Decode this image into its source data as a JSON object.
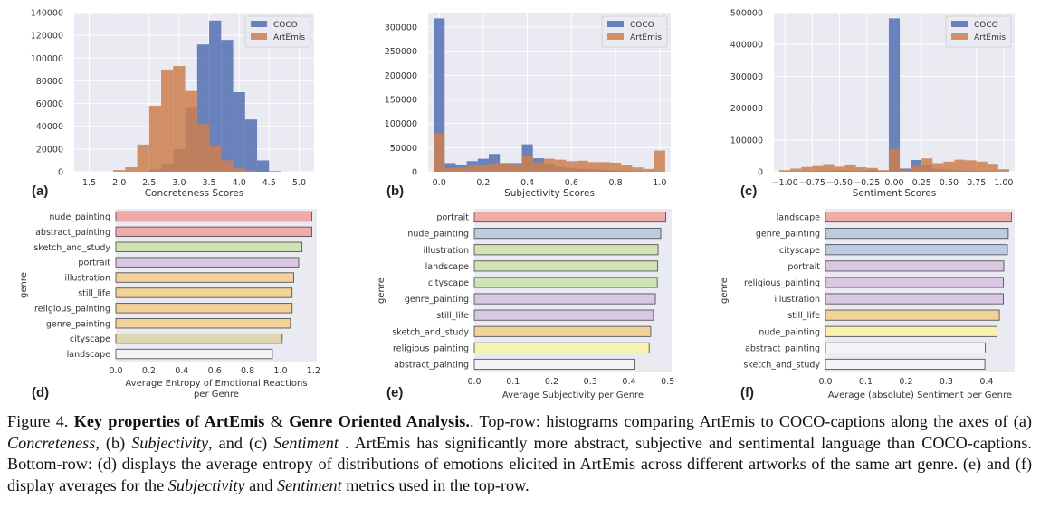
{
  "colors": {
    "coco": "#5470b3",
    "artemis": "#cc7f4f",
    "plot_bg": "#eaeaf2",
    "grid": "#ffffff",
    "bar_edge": "#555555"
  },
  "chart_data": [
    {
      "id": "a",
      "panel_label": "(a)",
      "type": "bar",
      "xlabel": "Concreteness Scores",
      "xlim": [
        1.25,
        5.25
      ],
      "ylim": [
        0,
        140000
      ],
      "xticks": [
        "1.5",
        "2.0",
        "2.5",
        "3.0",
        "3.5",
        "4.0",
        "4.5",
        "5.0"
      ],
      "xtick_values": [
        1.5,
        2.0,
        2.5,
        3.0,
        3.5,
        4.0,
        4.5,
        5.0
      ],
      "yticks": [
        "0",
        "20000",
        "40000",
        "60000",
        "80000",
        "100000",
        "120000",
        "140000"
      ],
      "ytick_values": [
        0,
        20000,
        40000,
        60000,
        80000,
        100000,
        120000,
        140000
      ],
      "bin_edges": [
        1.5,
        1.7,
        1.9,
        2.1,
        2.3,
        2.5,
        2.7,
        2.9,
        3.1,
        3.3,
        3.5,
        3.7,
        3.9,
        4.1,
        4.3,
        4.5,
        4.7,
        4.9,
        5.1
      ],
      "series": [
        {
          "name": "COCO",
          "values": [
            0,
            0,
            0,
            0,
            0,
            2000,
            7000,
            20000,
            57000,
            112000,
            133000,
            116000,
            70000,
            46000,
            10000,
            500,
            0,
            0
          ]
        },
        {
          "name": "ArtEmis",
          "values": [
            0,
            0,
            1500,
            4000,
            24000,
            58000,
            90000,
            93000,
            71000,
            42000,
            23000,
            10000,
            3000,
            1000,
            0,
            0,
            0,
            0
          ]
        }
      ],
      "legend_position": "top-right",
      "grid": true
    },
    {
      "id": "b",
      "panel_label": "(b)",
      "type": "bar",
      "xlabel": "Subjectivity Scores",
      "xlim": [
        -0.05,
        1.05
      ],
      "ylim": [
        0,
        330000
      ],
      "xticks": [
        "0.0",
        "0.2",
        "0.4",
        "0.6",
        "0.8",
        "1.0"
      ],
      "xtick_values": [
        0,
        0.2,
        0.4,
        0.6,
        0.8,
        1.0
      ],
      "yticks": [
        "0",
        "50000",
        "100000",
        "150000",
        "200000",
        "250000",
        "300000"
      ],
      "ytick_values": [
        0,
        50000,
        100000,
        150000,
        200000,
        250000,
        300000
      ],
      "bin_edges": [
        -0.025,
        0.025,
        0.075,
        0.125,
        0.175,
        0.225,
        0.275,
        0.325,
        0.375,
        0.425,
        0.475,
        0.525,
        0.575,
        0.625,
        0.675,
        0.725,
        0.775,
        0.825,
        0.875,
        0.925,
        0.975,
        1.025
      ],
      "series": [
        {
          "name": "COCO",
          "values": [
            318000,
            18000,
            14000,
            22000,
            27000,
            37000,
            18000,
            18000,
            57000,
            28000,
            17000,
            10000,
            8000,
            6000,
            5000,
            4000,
            3000,
            2000,
            1000,
            500,
            400
          ]
        },
        {
          "name": "ArtEmis",
          "values": [
            80000,
            8000,
            9000,
            13000,
            14000,
            18000,
            17000,
            16000,
            32000,
            20000,
            27000,
            25000,
            22000,
            23000,
            20000,
            20000,
            19000,
            14000,
            9000,
            6000,
            44000
          ]
        }
      ],
      "legend_position": "top-right",
      "grid": true
    },
    {
      "id": "c",
      "panel_label": "(c)",
      "type": "bar",
      "xlabel": "Sentiment Scores",
      "xlim": [
        -1.1,
        1.1
      ],
      "ylim": [
        0,
        500000
      ],
      "xticks": [
        "−1.00",
        "−0.75",
        "−0.50",
        "−0.25",
        "0.00",
        "0.25",
        "0.50",
        "0.75",
        "1.00"
      ],
      "xtick_values": [
        -1.0,
        -0.75,
        -0.5,
        -0.25,
        0,
        0.25,
        0.5,
        0.75,
        1.0
      ],
      "yticks": [
        "0",
        "100000",
        "200000",
        "300000",
        "400000",
        "500000"
      ],
      "ytick_values": [
        0,
        100000,
        200000,
        300000,
        400000,
        500000
      ],
      "bin_edges": [
        -1.05,
        -0.95,
        -0.85,
        -0.75,
        -0.65,
        -0.55,
        -0.45,
        -0.35,
        -0.25,
        -0.15,
        -0.05,
        0.05,
        0.15,
        0.25,
        0.35,
        0.45,
        0.55,
        0.65,
        0.75,
        0.85,
        0.95,
        1.05
      ],
      "series": [
        {
          "name": "COCO",
          "values": [
            0,
            1000,
            2000,
            3000,
            3000,
            5000,
            4000,
            3000,
            6000,
            4000,
            482000,
            10000,
            37000,
            22000,
            9000,
            7000,
            4000,
            3000,
            2000,
            1000,
            500
          ]
        },
        {
          "name": "ArtEmis",
          "values": [
            5000,
            10000,
            15000,
            18000,
            24000,
            16000,
            23000,
            14000,
            12000,
            5000,
            72000,
            5000,
            18000,
            42000,
            27000,
            32000,
            38000,
            36000,
            32000,
            25000,
            8000
          ]
        }
      ],
      "legend_position": "top-right",
      "grid": true
    },
    {
      "id": "d",
      "panel_label": "(d)",
      "type": "bar",
      "orientation": "horizontal",
      "xlabel": "Average Entropy of Emotional Reactions per Genre",
      "xlabel_lines": [
        "Average Entropy of Emotional Reactions",
        "per Genre"
      ],
      "ylabel": "genre",
      "xlim": [
        0,
        1.22
      ],
      "xticks": [
        "0.0",
        "0.2",
        "0.4",
        "0.6",
        "0.8",
        "1.0",
        "1.2"
      ],
      "xtick_values": [
        0,
        0.2,
        0.4,
        0.6,
        0.8,
        1.0,
        1.2
      ],
      "categories": [
        "nude_painting",
        "abstract_painting",
        "sketch_and_study",
        "portrait",
        "illustration",
        "still_life",
        "religious_painting",
        "genre_painting",
        "cityscape",
        "landscape"
      ],
      "values": [
        1.19,
        1.19,
        1.13,
        1.11,
        1.08,
        1.07,
        1.07,
        1.06,
        1.01,
        0.95
      ],
      "bar_colors": [
        "#efaaaa",
        "#efaaaa",
        "#cfe3b5",
        "#d9c7e4",
        "#f3d29a",
        "#f3d29a",
        "#f3d29a",
        "#f3d29a",
        "#e0d7b0",
        "#f4f4f4"
      ]
    },
    {
      "id": "e",
      "panel_label": "(e)",
      "type": "bar",
      "orientation": "horizontal",
      "xlabel": "Average Subjectivity per Genre",
      "ylabel": "genre",
      "xlim": [
        0,
        0.51
      ],
      "xticks": [
        "0.0",
        "0.1",
        "0.2",
        "0.3",
        "0.4",
        "0.5"
      ],
      "xtick_values": [
        0,
        0.1,
        0.2,
        0.3,
        0.4,
        0.5
      ],
      "categories": [
        "portrait",
        "nude_painting",
        "illustration",
        "landscape",
        "cityscape",
        "genre_painting",
        "still_life",
        "sketch_and_study",
        "religious_painting",
        "abstract_painting"
      ],
      "values": [
        0.495,
        0.482,
        0.475,
        0.474,
        0.473,
        0.468,
        0.463,
        0.456,
        0.452,
        0.415
      ],
      "bar_colors": [
        "#efaaaa",
        "#bccbe3",
        "#cfe3b5",
        "#cfe3b5",
        "#cfe3b5",
        "#d9c7e4",
        "#d9c7e4",
        "#f3d29a",
        "#f7f2b0",
        "#f4f4f4"
      ]
    },
    {
      "id": "f",
      "panel_label": "(f)",
      "type": "bar",
      "orientation": "horizontal",
      "xlabel": "Average (absolute) Sentiment per Genre",
      "ylabel": "genre",
      "xlim": [
        0,
        0.47
      ],
      "xticks": [
        "0.0",
        "0.1",
        "0.2",
        "0.3",
        "0.4"
      ],
      "xtick_values": [
        0,
        0.1,
        0.2,
        0.3,
        0.4
      ],
      "categories": [
        "landscape",
        "genre_painting",
        "cityscape",
        "portrait",
        "religious_painting",
        "illustration",
        "still_life",
        "nude_painting",
        "abstract_painting",
        "sketch_and_study"
      ],
      "values": [
        0.462,
        0.454,
        0.452,
        0.443,
        0.442,
        0.442,
        0.432,
        0.426,
        0.397,
        0.396
      ],
      "bar_colors": [
        "#efaaaa",
        "#bccbe3",
        "#bccbe3",
        "#d9c7e4",
        "#d9c7e4",
        "#d9c7e4",
        "#f3d29a",
        "#f7f2b0",
        "#f4f4f4",
        "#f4f4f4"
      ]
    }
  ],
  "caption": {
    "figure_label": "Figure 4.",
    "bold_title": "Key properties of ArtEmis",
    "amp": "&",
    "bold_title2": "Genre Oriented Analysis.",
    "t1": ". Top-row: histograms comparing ArtEmis to COCO-captions along the axes of (a) ",
    "i1": "Concreteness",
    "t2": ", (b) ",
    "i2": "Subjectivity",
    "t3": ", and (c) ",
    "i3": "Sentiment",
    "t4": " .  ArtEmis has significantly more abstract, subjective and sentimental language than COCO-captions.  Bottom-row: (d) displays the average entropy of distributions of emotions elicited in ArtEmis across different artworks of the same art genre. (e) and (f) display averages for the ",
    "i4": "Subjectivity",
    "t5": " and ",
    "i5": "Sentiment",
    "t6": " metrics used in the top-row."
  }
}
